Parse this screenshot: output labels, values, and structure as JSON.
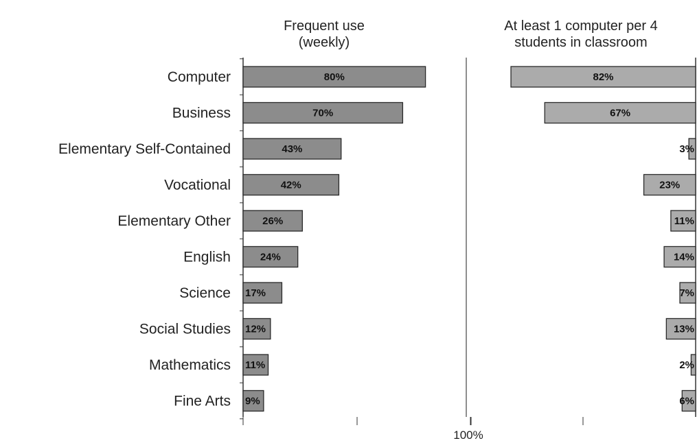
{
  "chart_data": {
    "type": "bar",
    "orientation": "horizontal",
    "categories": [
      "Computer",
      "Business",
      "Elementary Self-Contained",
      "Vocational",
      "Elementary Other",
      "English",
      "Science",
      "Social Studies",
      "Mathematics",
      "Fine Arts"
    ],
    "panels": [
      {
        "title_lines": [
          "Frequent use",
          "(weekly)"
        ],
        "direction": "right",
        "values": [
          80,
          70,
          43,
          42,
          26,
          24,
          17,
          12,
          11,
          9
        ],
        "labels": [
          "80%",
          "70%",
          "43%",
          "42%",
          "26%",
          "24%",
          "17%",
          "12%",
          "11%",
          "9%"
        ],
        "xlim": [
          0,
          100
        ],
        "bar_color": "#8c8c8c"
      },
      {
        "title_lines": [
          "At least 1 computer per 4",
          "students in classroom"
        ],
        "direction": "left",
        "values": [
          82,
          67,
          3,
          23,
          11,
          14,
          7,
          13,
          2,
          6
        ],
        "labels": [
          "82%",
          "67%",
          "3%",
          "23%",
          "11%",
          "14%",
          "7%",
          "13%",
          "2%",
          "6%"
        ],
        "xlim": [
          0,
          100
        ],
        "bar_color": "#ababab"
      }
    ],
    "axis_tick_label": "100%",
    "grid": false,
    "legend": "none"
  }
}
